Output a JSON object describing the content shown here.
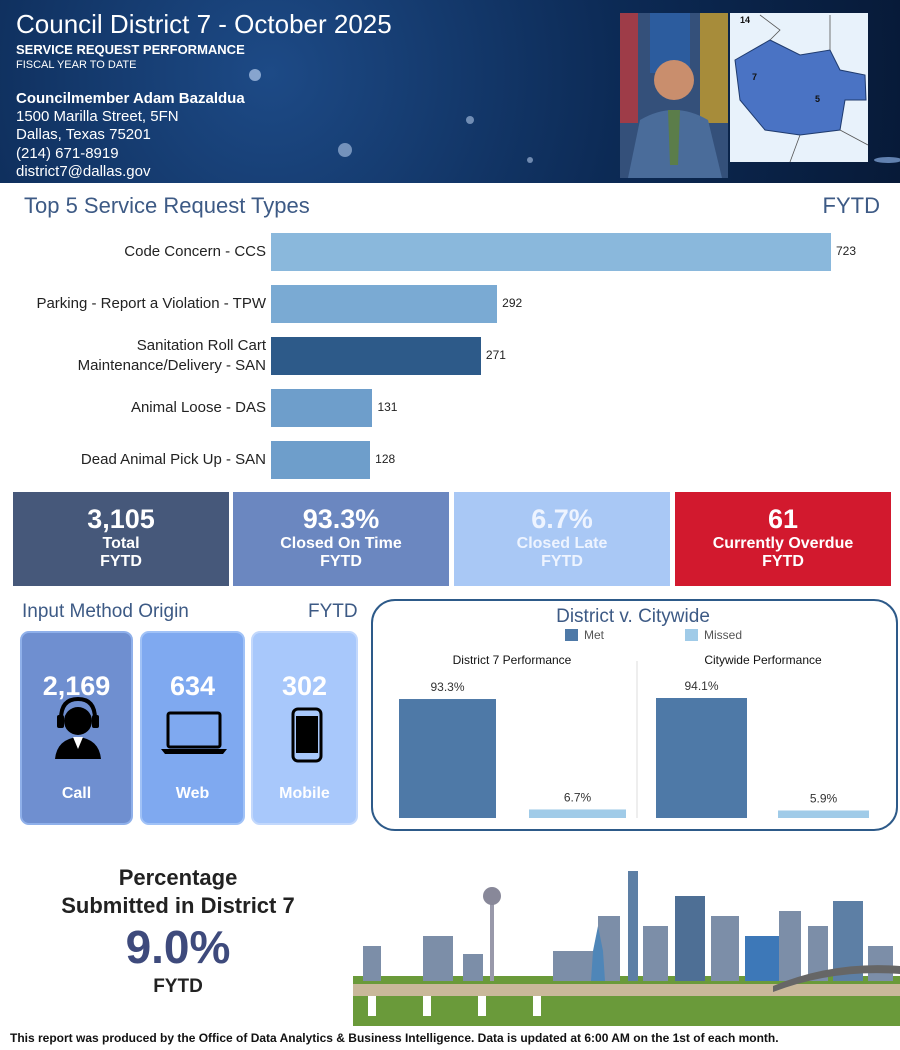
{
  "header": {
    "title": "Council District 7 - October 2025",
    "subtitle": "SERVICE REQUEST PERFORMANCE",
    "period": "FISCAL YEAR TO DATE",
    "councilmember": "Councilmember Adam Bazaldua",
    "address": [
      "1500 Marilla Street, 5FN",
      "Dallas, Texas 75201",
      "(214) 671-8919",
      "district7@dallas.gov"
    ],
    "map_labels": [
      "14",
      "7",
      "5"
    ]
  },
  "chart_data": [
    {
      "type": "bar",
      "orientation": "horizontal",
      "title": "Top 5 Service Request Types",
      "subtitle": "FYTD",
      "categories": [
        "Code Concern - CCS",
        "Parking - Report a Violation - TPW",
        "Sanitation Roll Cart Maintenance/Delivery - SAN",
        "Animal Loose - DAS",
        "Dead Animal Pick Up - SAN"
      ],
      "values": [
        723,
        292,
        271,
        131,
        128
      ],
      "colors": [
        "#8ab8dc",
        "#7aaad3",
        "#2d5a89",
        "#6e9ecb",
        "#6e9ecb"
      ]
    },
    {
      "type": "bar",
      "title": "District v. Citywide",
      "categories": [
        "District 7 Performance",
        "Citywide Performance"
      ],
      "series": [
        {
          "name": "Met",
          "color": "#4e79a7",
          "values": [
            93.3,
            94.1
          ],
          "value_labels": [
            "93.3%",
            "94.1%"
          ]
        },
        {
          "name": "Missed",
          "color": "#a0cbe8",
          "values": [
            6.7,
            5.9
          ],
          "value_labels": [
            "6.7%",
            "5.9%"
          ]
        }
      ]
    }
  ],
  "kpis": [
    {
      "value": "3,105",
      "label": "Total",
      "period": "FYTD"
    },
    {
      "value": "93.3%",
      "label": "Closed On Time",
      "period": "FYTD"
    },
    {
      "value": "6.7%",
      "label": "Closed Late",
      "period": "FYTD"
    },
    {
      "value": "61",
      "label": "Currently Overdue",
      "period": "FYTD"
    }
  ],
  "input_methods": {
    "title": "Input Method Origin",
    "period": "FYTD",
    "items": [
      {
        "value": "2,169",
        "label": "Call"
      },
      {
        "value": "634",
        "label": "Web"
      },
      {
        "value": "302",
        "label": "Mobile"
      }
    ]
  },
  "percentage": {
    "title": [
      "Percentage",
      "Submitted in District 7"
    ],
    "value": "9.0%",
    "period": "FYTD"
  },
  "footer": "This report was produced by the Office of Data Analytics & Business Intelligence. Data is updated at 6:00 AM on the 1st of each month."
}
